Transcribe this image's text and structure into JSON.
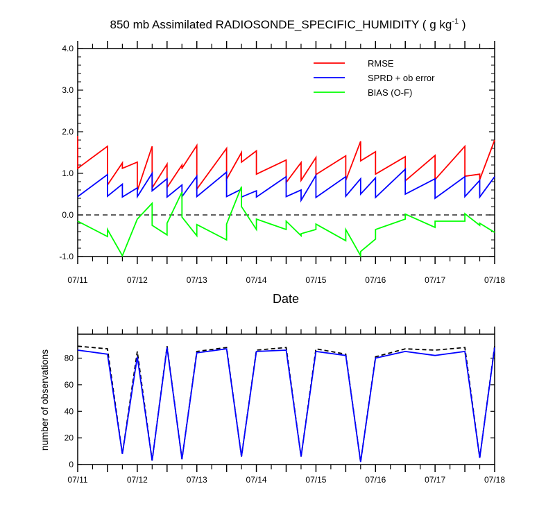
{
  "chart_data": [
    {
      "type": "line",
      "title_main": "850 mb Assimilated RADIOSONDE_SPECIFIC_HUMIDITY ( g kg",
      "title_sup": "-1",
      "title_end": " )",
      "xlabel": "Date",
      "ylabel": "",
      "xlim": [
        0,
        7
      ],
      "ylim": [
        -1.0,
        4.0
      ],
      "xticks": [
        0,
        1,
        2,
        3,
        4,
        5,
        6,
        7
      ],
      "xtick_labels": [
        "07/11",
        "07/12",
        "07/13",
        "07/14",
        "07/15",
        "07/16",
        "07/17",
        "07/18"
      ],
      "yticks": [
        -1.0,
        0.0,
        1.0,
        2.0,
        3.0,
        4.0
      ],
      "ytick_labels": [
        "-1.0",
        "0.0",
        "1.0",
        "2.0",
        "3.0",
        "4.0"
      ],
      "zero_line": 0.0,
      "legend": [
        "RMSE",
        "SPRD + ob error",
        "BIAS (O-F)"
      ],
      "legend_position": "top-right",
      "series": [
        {
          "name": "RMSE",
          "color": "#ff0000",
          "points": [
            [
              0,
              1.9
            ],
            [
              0,
              1.12
            ],
            [
              0.5,
              1.65
            ],
            [
              0.5,
              0.72
            ],
            [
              0.75,
              1.25
            ],
            [
              0.75,
              1.12
            ],
            [
              1,
              1.27
            ],
            [
              1,
              0.58
            ],
            [
              1.25,
              1.65
            ],
            [
              1.25,
              0.65
            ],
            [
              1.5,
              1.22
            ],
            [
              1.5,
              0.66
            ],
            [
              1.75,
              1.2
            ],
            [
              1.75,
              1.1
            ],
            [
              1.75,
              1.12
            ],
            [
              2,
              1.67
            ],
            [
              2,
              0.62
            ],
            [
              2.5,
              1.6
            ],
            [
              2.5,
              0.86
            ],
            [
              2.75,
              1.5
            ],
            [
              2.75,
              1.27
            ],
            [
              3,
              1.54
            ],
            [
              3,
              0.98
            ],
            [
              3.5,
              1.32
            ],
            [
              3.5,
              0.78
            ],
            [
              3.75,
              1.26
            ],
            [
              3.75,
              0.83
            ],
            [
              4,
              1.38
            ],
            [
              4,
              0.97
            ],
            [
              4.5,
              1.42
            ],
            [
              4.5,
              0.83
            ],
            [
              4.75,
              1.77
            ],
            [
              4.75,
              1.3
            ],
            [
              5,
              1.52
            ],
            [
              5,
              0.98
            ],
            [
              5.5,
              1.4
            ],
            [
              5.5,
              0.82
            ],
            [
              6,
              1.43
            ],
            [
              6,
              0.85
            ],
            [
              6.5,
              1.65
            ],
            [
              6.5,
              0.93
            ],
            [
              6.75,
              0.98
            ],
            [
              6.75,
              0.85
            ],
            [
              7,
              1.8
            ]
          ]
        },
        {
          "name": "SPRD + ob error",
          "color": "#0000ff",
          "points": [
            [
              0,
              0.44
            ],
            [
              0.5,
              0.97
            ],
            [
              0.5,
              0.45
            ],
            [
              0.75,
              0.74
            ],
            [
              0.75,
              0.43
            ],
            [
              1,
              0.65
            ],
            [
              1,
              0.44
            ],
            [
              1.25,
              1.0
            ],
            [
              1.25,
              0.58
            ],
            [
              1.5,
              0.87
            ],
            [
              1.5,
              0.43
            ],
            [
              1.75,
              0.72
            ],
            [
              1.75,
              0.44
            ],
            [
              2,
              0.93
            ],
            [
              2,
              0.44
            ],
            [
              2.5,
              1.03
            ],
            [
              2.5,
              0.44
            ],
            [
              2.75,
              0.62
            ],
            [
              2.75,
              0.43
            ],
            [
              3,
              0.58
            ],
            [
              3,
              0.43
            ],
            [
              3.5,
              0.92
            ],
            [
              3.5,
              0.44
            ],
            [
              3.75,
              0.6
            ],
            [
              3.75,
              0.35
            ],
            [
              4,
              0.95
            ],
            [
              4,
              0.42
            ],
            [
              4.5,
              0.92
            ],
            [
              4.5,
              0.45
            ],
            [
              4.75,
              0.87
            ],
            [
              4.75,
              0.5
            ],
            [
              5,
              0.89
            ],
            [
              5,
              0.42
            ],
            [
              5.5,
              1.1
            ],
            [
              5.5,
              0.5
            ],
            [
              6,
              0.87
            ],
            [
              6,
              0.4
            ],
            [
              6.5,
              0.92
            ],
            [
              6.5,
              0.44
            ],
            [
              6.75,
              0.83
            ],
            [
              6.75,
              0.43
            ],
            [
              7,
              0.92
            ]
          ]
        },
        {
          "name": "BIAS (O-F)",
          "color": "#00ff00",
          "points": [
            [
              0,
              -0.15
            ],
            [
              0.5,
              -0.52
            ],
            [
              0.5,
              -0.35
            ],
            [
              0.75,
              -0.98
            ],
            [
              1,
              -0.1
            ],
            [
              1.25,
              0.28
            ],
            [
              1.25,
              -0.25
            ],
            [
              1.5,
              -0.48
            ],
            [
              1.5,
              -0.2
            ],
            [
              1.75,
              0.55
            ],
            [
              1.75,
              -0.05
            ],
            [
              2,
              -0.5
            ],
            [
              2,
              -0.23
            ],
            [
              2.5,
              -0.6
            ],
            [
              2.5,
              -0.22
            ],
            [
              2.75,
              0.68
            ],
            [
              2.75,
              0.2
            ],
            [
              3,
              -0.35
            ],
            [
              3,
              -0.1
            ],
            [
              3.5,
              -0.35
            ],
            [
              3.5,
              -0.15
            ],
            [
              3.75,
              -0.5
            ],
            [
              3.75,
              -0.45
            ],
            [
              4,
              -0.35
            ],
            [
              4,
              -0.22
            ],
            [
              4.5,
              -0.62
            ],
            [
              4.5,
              -0.35
            ],
            [
              4.75,
              -0.98
            ],
            [
              4.75,
              -0.88
            ],
            [
              5,
              -0.58
            ],
            [
              5,
              -0.35
            ],
            [
              5.5,
              -0.1
            ],
            [
              5.5,
              0.02
            ],
            [
              6,
              -0.3
            ],
            [
              6,
              -0.15
            ],
            [
              6.5,
              -0.15
            ],
            [
              6.5,
              0.03
            ],
            [
              6.75,
              -0.25
            ],
            [
              6.75,
              -0.2
            ],
            [
              7,
              -0.42
            ]
          ]
        }
      ]
    },
    {
      "type": "line",
      "title": "",
      "xlabel": "",
      "ylabel": "number of observations",
      "xlim": [
        0,
        7
      ],
      "ylim": [
        0,
        98
      ],
      "xticks": [
        0,
        1,
        2,
        3,
        4,
        5,
        6,
        7
      ],
      "xtick_labels": [
        "07/11",
        "07/12",
        "07/13",
        "07/14",
        "07/15",
        "07/16",
        "07/17",
        "07/18"
      ],
      "yticks": [
        0,
        20,
        40,
        60,
        80
      ],
      "ytick_labels": [
        "0",
        "20",
        "40",
        "60",
        "80"
      ],
      "series": [
        {
          "name": "possible",
          "color": "#000000",
          "dashed": true,
          "points": [
            [
              0,
              89
            ],
            [
              0.5,
              87
            ],
            [
              0.75,
              8
            ],
            [
              1,
              85
            ],
            [
              1.25,
              3
            ],
            [
              1.5,
              89
            ],
            [
              1.75,
              4
            ],
            [
              2,
              85
            ],
            [
              2.5,
              88
            ],
            [
              2.75,
              6
            ],
            [
              3,
              86
            ],
            [
              3.5,
              88
            ],
            [
              3.75,
              6
            ],
            [
              4,
              87
            ],
            [
              4.5,
              83
            ],
            [
              4.75,
              2
            ],
            [
              5,
              81
            ],
            [
              5.5,
              87
            ],
            [
              6,
              86
            ],
            [
              6.5,
              88
            ],
            [
              6.75,
              5
            ],
            [
              7,
              89
            ]
          ]
        },
        {
          "name": "assimilated",
          "color": "#0000ff",
          "dashed": false,
          "points": [
            [
              0,
              86
            ],
            [
              0.5,
              83
            ],
            [
              0.75,
              8
            ],
            [
              1,
              81
            ],
            [
              1.25,
              3
            ],
            [
              1.5,
              88
            ],
            [
              1.75,
              4
            ],
            [
              2,
              84
            ],
            [
              2.5,
              87
            ],
            [
              2.75,
              6
            ],
            [
              3,
              85
            ],
            [
              3.5,
              86
            ],
            [
              3.75,
              6
            ],
            [
              4,
              85
            ],
            [
              4.5,
              82
            ],
            [
              4.75,
              2
            ],
            [
              5,
              80
            ],
            [
              5.5,
              85
            ],
            [
              6,
              82
            ],
            [
              6.5,
              85
            ],
            [
              6.75,
              5
            ],
            [
              7,
              88
            ]
          ]
        }
      ]
    }
  ]
}
